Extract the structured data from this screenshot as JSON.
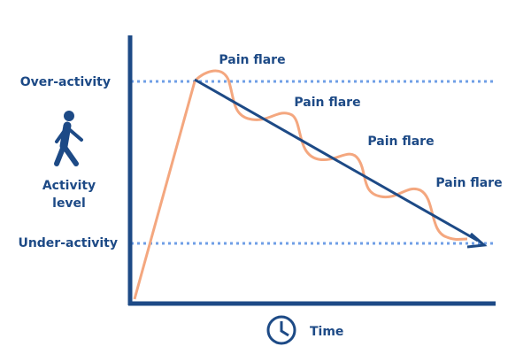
{
  "labels": {
    "over_activity": "Over-activity",
    "under_activity": "Under-activity",
    "y_axis": [
      "Activity",
      "level"
    ],
    "x_axis": "Time",
    "pain_flares": [
      "Pain flare",
      "Pain flare",
      "Pain flare",
      "Pain flare"
    ]
  }
}
